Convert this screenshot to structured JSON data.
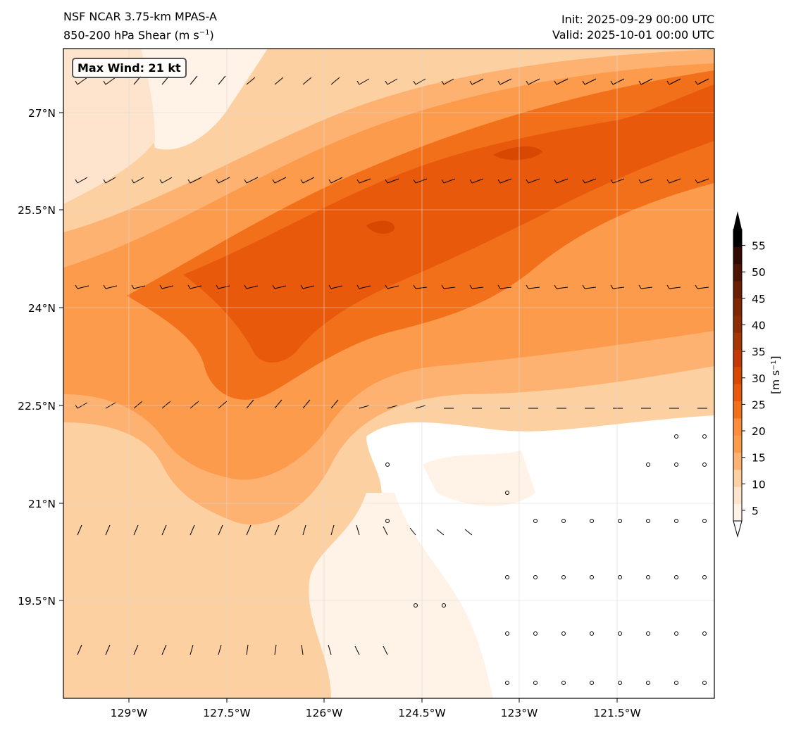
{
  "header": {
    "model_line": "NSF NCAR 3.75-km MPAS-A",
    "field_prefix": "850-200 hPa Shear (m s",
    "field_exp": "−1",
    "field_suffix": ")",
    "init": "Init: 2025-09-29 00:00 UTC",
    "valid": "Valid: 2025-10-01 00:00 UTC"
  },
  "annotation": {
    "max_wind": "Max Wind: 21 kt"
  },
  "map": {
    "lon_ticks": [
      "129°W",
      "127.5°W",
      "126°W",
      "124.5°W",
      "123°W",
      "121.5°W"
    ],
    "lat_ticks": [
      "27°N",
      "25.5°N",
      "24°N",
      "22.5°N",
      "21°N",
      "19.5°N"
    ]
  },
  "colorbar": {
    "label": "[m s⁻¹]",
    "levels": [
      "5",
      "10",
      "15",
      "20",
      "25",
      "30",
      "35",
      "40",
      "45",
      "50",
      "55"
    ],
    "colors": [
      "#fff2e6",
      "#fee4cc",
      "#fdd0a2",
      "#fdb272",
      "#fd9b4c",
      "#fd8d3c",
      "#f3701b",
      "#e8590c",
      "#d94801",
      "#c23806",
      "#a63603",
      "#8c2d04",
      "#7f2704",
      "#6a1e03",
      "#4d1402",
      "#300a01",
      "#000000"
    ]
  }
}
